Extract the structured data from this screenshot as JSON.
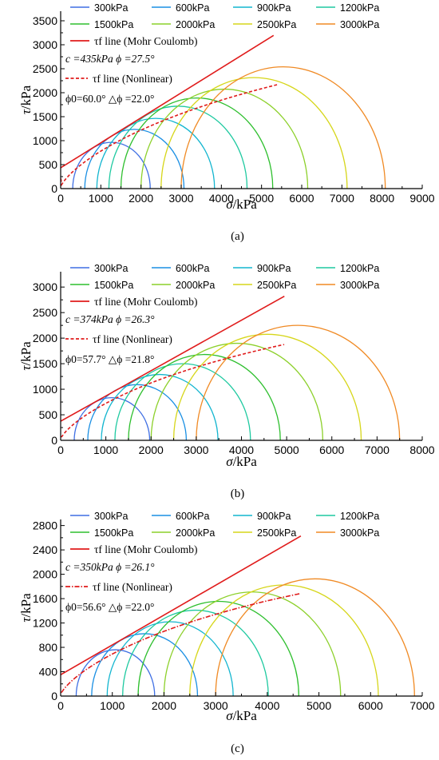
{
  "figure": {
    "background": "#ffffff"
  },
  "legend_entries": [
    {
      "label": "300kPa",
      "color": "#3f6fe3"
    },
    {
      "label": "600kPa",
      "color": "#1a8fe3"
    },
    {
      "label": "900kPa",
      "color": "#12b5cf"
    },
    {
      "label": "1200kPa",
      "color": "#1ec9a0"
    },
    {
      "label": "1500kPa",
      "color": "#2ebf2e"
    },
    {
      "label": "2000kPa",
      "color": "#8cd02a"
    },
    {
      "label": "2500kPa",
      "color": "#d6d61a"
    },
    {
      "label": "3000kPa",
      "color": "#f08a24"
    }
  ],
  "line_colors": {
    "mohr": "#e01b1b",
    "nonlinear": "#e01b1b"
  },
  "chart_data": [
    {
      "type": "line",
      "panel_label": "(a)",
      "xlabel": "σ/kPa",
      "ylabel": "τ/kPa",
      "xlim": [
        0,
        9000
      ],
      "ylim": [
        0,
        3700
      ],
      "xticks": [
        0,
        1000,
        2000,
        3000,
        4000,
        5000,
        6000,
        7000,
        8000,
        9000
      ],
      "yticks": [
        0,
        500,
        1000,
        1500,
        2000,
        2500,
        3000,
        3500
      ],
      "mohr_line_label": "τf line (Mohr Coulomb)",
      "nonlinear_line_label": "τf line (Nonlinear)",
      "annotation_c": "c =435kPa ϕ =27.5°",
      "annotation_phi": "ϕ0=60.0° △ϕ =22.0°",
      "c": 435,
      "phi": 27.5,
      "phi0": 60.0,
      "dphi": 22.0,
      "mohr_line_x_end": 5300,
      "nonlinear_x_end": 5400,
      "circles": [
        {
          "sigma3": 300,
          "sigma1": 2230
        },
        {
          "sigma3": 600,
          "sigma1": 3070
        },
        {
          "sigma3": 900,
          "sigma1": 3830
        },
        {
          "sigma3": 1200,
          "sigma1": 4640
        },
        {
          "sigma3": 1500,
          "sigma1": 5280
        },
        {
          "sigma3": 2000,
          "sigma1": 6150
        },
        {
          "sigma3": 2500,
          "sigma1": 7130
        },
        {
          "sigma3": 3000,
          "sigma1": 8080
        }
      ]
    },
    {
      "type": "line",
      "panel_label": "(b)",
      "xlabel": "σ/kPa",
      "ylabel": "τ/kPa",
      "xlim": [
        0,
        8000
      ],
      "ylim": [
        0,
        3300
      ],
      "xticks": [
        0,
        1000,
        2000,
        3000,
        4000,
        5000,
        6000,
        7000,
        8000
      ],
      "yticks": [
        0,
        500,
        1000,
        1500,
        2000,
        2500,
        3000
      ],
      "mohr_line_label": "τf line (Mohr Coulomb)",
      "nonlinear_line_label": "τf line (Nonlinear)",
      "annotation_c": "c =374kPa ϕ =26.3°",
      "annotation_phi": "ϕ0=57.7° △ϕ =21.8°",
      "c": 374,
      "phi": 26.3,
      "phi0": 57.7,
      "dphi": 21.8,
      "mohr_line_x_end": 4950,
      "nonlinear_x_end": 4950,
      "circles": [
        {
          "sigma3": 300,
          "sigma1": 1970
        },
        {
          "sigma3": 600,
          "sigma1": 2780
        },
        {
          "sigma3": 900,
          "sigma1": 3480
        },
        {
          "sigma3": 1200,
          "sigma1": 4200
        },
        {
          "sigma3": 1500,
          "sigma1": 4860
        },
        {
          "sigma3": 2000,
          "sigma1": 5800
        },
        {
          "sigma3": 2500,
          "sigma1": 6650
        },
        {
          "sigma3": 3000,
          "sigma1": 7500
        }
      ]
    },
    {
      "type": "line",
      "panel_label": "(c)",
      "xlabel": "σ/kPa",
      "ylabel": "τ/kPa",
      "xlim": [
        0,
        7000
      ],
      "ylim": [
        0,
        2900
      ],
      "xticks": [
        0,
        1000,
        2000,
        3000,
        4000,
        5000,
        6000,
        7000
      ],
      "yticks": [
        0,
        400,
        800,
        1200,
        1600,
        2000,
        2400,
        2800
      ],
      "mohr_line_label": "τf line (Mohr Coulomb)",
      "nonlinear_line_label": "τf line (Nonlinear)",
      "annotation_c": "c =350kPa ϕ =26.1°",
      "annotation_phi": "ϕ0=56.6° △ϕ =22.0°",
      "c": 350,
      "phi": 26.1,
      "phi0": 56.6,
      "dphi": 22.0,
      "mohr_line_x_end": 4650,
      "nonlinear_x_end": 4650,
      "circles": [
        {
          "sigma3": 300,
          "sigma1": 1820
        },
        {
          "sigma3": 600,
          "sigma1": 2650
        },
        {
          "sigma3": 900,
          "sigma1": 3340
        },
        {
          "sigma3": 1200,
          "sigma1": 4020
        },
        {
          "sigma3": 1500,
          "sigma1": 4610
        },
        {
          "sigma3": 2000,
          "sigma1": 5420
        },
        {
          "sigma3": 2500,
          "sigma1": 6150
        },
        {
          "sigma3": 3000,
          "sigma1": 6850
        }
      ]
    }
  ]
}
